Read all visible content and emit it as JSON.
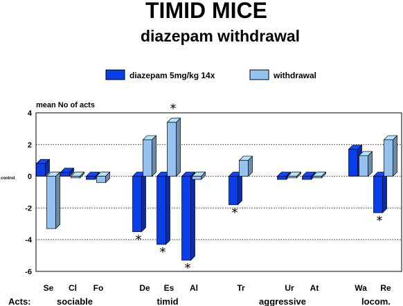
{
  "chart_data": {
    "type": "bar",
    "title": "TIMID MICE",
    "subtitle": "diazepam withdrawal",
    "ylabel": "mean No of acts",
    "zero_label": "control",
    "xaxis_prefix": "Acts:",
    "ylim": [
      -6,
      4
    ],
    "yticks": [
      4,
      2,
      0,
      -2,
      -4,
      -6
    ],
    "grid": "dotted horizontal lines",
    "legend_position": "top-center",
    "categories": [
      "Se",
      "Cl",
      "Fo",
      "De",
      "Es",
      "Al",
      "Tr",
      "Ur",
      "At",
      "Wa",
      "Re"
    ],
    "groups": [
      {
        "label": "sociable",
        "members": [
          "Se",
          "Cl",
          "Fo"
        ]
      },
      {
        "label": "timid",
        "members": [
          "De",
          "Es",
          "Al"
        ]
      },
      {
        "label": "aggressive",
        "members": [
          "Tr",
          "Ur",
          "At"
        ]
      },
      {
        "label": "locom.",
        "members": [
          "Wa",
          "Re"
        ]
      }
    ],
    "series": [
      {
        "name": "diazepam 5mg/kg 14x",
        "color": "#0a3ee8",
        "values": [
          0.8,
          0.25,
          -0.2,
          -3.5,
          -4.3,
          -5.3,
          -1.8,
          -0.2,
          -0.2,
          1.7,
          -2.3
        ]
      },
      {
        "name": "withdrawal",
        "color": "#96c2ef",
        "values": [
          -3.3,
          -0.1,
          -0.4,
          2.3,
          3.4,
          -0.2,
          1.0,
          -0.1,
          -0.1,
          1.3,
          2.3
        ]
      }
    ],
    "significance": [
      {
        "category": "De",
        "series": 0,
        "mark": "*"
      },
      {
        "category": "Es",
        "series": 0,
        "mark": "*"
      },
      {
        "category": "Es",
        "series": 1,
        "mark": "*"
      },
      {
        "category": "Al",
        "series": 0,
        "mark": "*"
      },
      {
        "category": "Tr",
        "series": 0,
        "mark": "*"
      },
      {
        "category": "Re",
        "series": 0,
        "mark": "*"
      }
    ]
  }
}
